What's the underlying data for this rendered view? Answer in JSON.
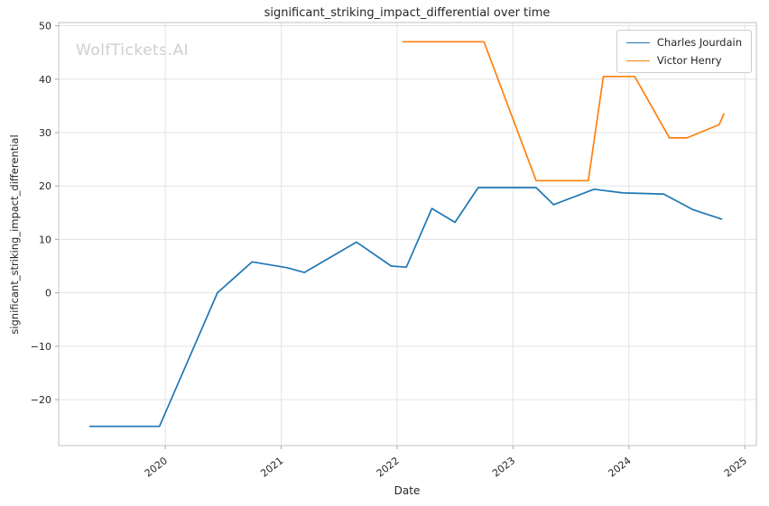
{
  "chart_data": {
    "type": "line",
    "title": "significant_striking_impact_differential over time",
    "xlabel": "Date",
    "ylabel": "significant_striking_impact_differential",
    "watermark": "WolfTickets.AI",
    "xlim": [
      2019.08,
      2025.1
    ],
    "ylim": [
      -28.6,
      50.6
    ],
    "xticks": [
      2020,
      2021,
      2022,
      2023,
      2024,
      2025
    ],
    "yticks": [
      -20,
      -10,
      0,
      10,
      20,
      30,
      40,
      50
    ],
    "grid": true,
    "legend_position": "upper right",
    "colors": {
      "grid": "#e3e3e3",
      "spine": "#cccccc",
      "tick_label": "#262626",
      "watermark": "#cfcfcf"
    },
    "series": [
      {
        "name": "Charles Jourdain",
        "color": "#1f77b4",
        "x": [
          2019.35,
          2019.95,
          2020.45,
          2020.75,
          2021.05,
          2021.2,
          2021.65,
          2021.95,
          2022.08,
          2022.3,
          2022.5,
          2022.7,
          2022.95,
          2023.2,
          2023.35,
          2023.7,
          2023.95,
          2024.3,
          2024.55,
          2024.8
        ],
        "y": [
          -25,
          -25,
          0,
          5.8,
          4.7,
          3.8,
          9.5,
          5.0,
          4.8,
          15.8,
          13.2,
          19.7,
          19.7,
          19.7,
          16.5,
          19.4,
          18.7,
          18.5,
          15.6,
          13.8
        ]
      },
      {
        "name": "Victor Henry",
        "color": "#ff7f0e",
        "x": [
          2022.05,
          2022.4,
          2022.75,
          2023.2,
          2023.65,
          2023.78,
          2024.05,
          2024.35,
          2024.5,
          2024.78,
          2024.82
        ],
        "y": [
          47,
          47,
          47,
          21,
          21,
          40.5,
          40.5,
          29,
          29,
          31.5,
          33.5
        ]
      }
    ]
  }
}
